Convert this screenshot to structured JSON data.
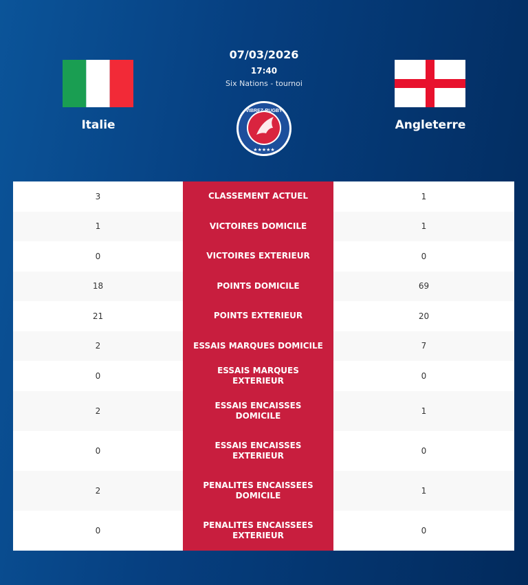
{
  "match": {
    "date": "07/03/2026",
    "time": "17:40",
    "competition": "Six Nations - tournoi"
  },
  "home": {
    "name": "Italie",
    "flag": "italy-flag"
  },
  "away": {
    "name": "Angleterre",
    "flag": "england-flag"
  },
  "logo": {
    "text": "VIBREZ-RUGBY.COM"
  },
  "colors": {
    "accent": "#c81e3e",
    "background": "#063f80"
  },
  "rows": [
    {
      "label": "CLASSEMENT ACTUEL",
      "home": "3",
      "away": "1"
    },
    {
      "label": "VICTOIRES DOMICILE",
      "home": "1",
      "away": "1"
    },
    {
      "label": "VICTOIRES EXTERIEUR",
      "home": "0",
      "away": "0"
    },
    {
      "label": "POINTS DOMICILE",
      "home": "18",
      "away": "69"
    },
    {
      "label": "POINTS EXTERIEUR",
      "home": "21",
      "away": "20"
    },
    {
      "label": "ESSAIS MARQUES DOMICILE",
      "home": "2",
      "away": "7"
    },
    {
      "label": "ESSAIS MARQUES EXTERIEUR",
      "home": "0",
      "away": "0"
    },
    {
      "label": "ESSAIS ENCAISSES DOMICILE",
      "home": "2",
      "away": "1"
    },
    {
      "label": "ESSAIS ENCAISSES EXTERIEUR",
      "home": "0",
      "away": "0"
    },
    {
      "label": "PENALITES ENCAISSEES DOMICILE",
      "home": "2",
      "away": "1"
    },
    {
      "label": "PENALITES ENCAISSEES EXTERIEUR",
      "home": "0",
      "away": "0"
    }
  ]
}
